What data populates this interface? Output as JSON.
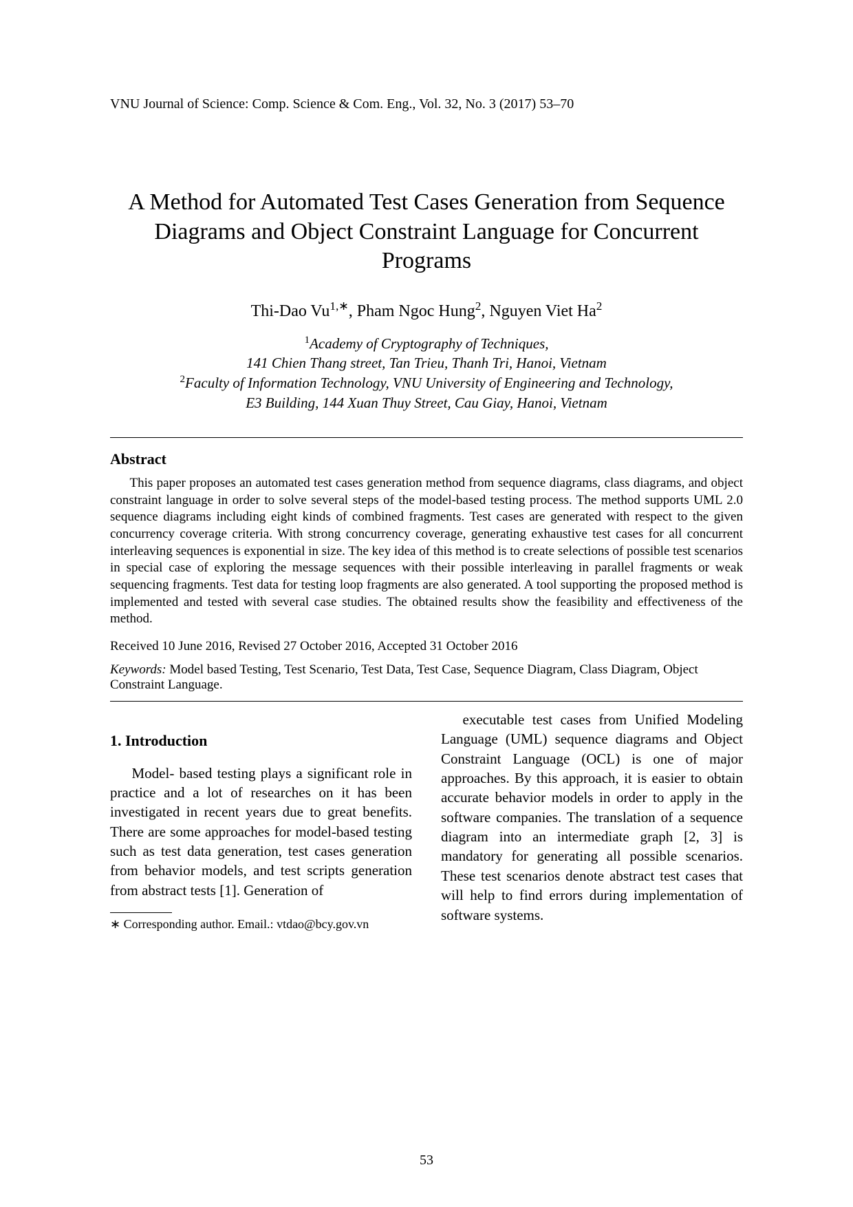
{
  "journal_header": "VNU Journal of Science: Comp. Science & Com. Eng., Vol. 32, No. 3 (2017) 53–70",
  "title": "A Method for Automated Test Cases Generation from Sequence Diagrams and Object Constraint Language for Concurrent Programs",
  "authors_html": "Thi-Dao Vu<sup class='sup'>1,*</sup>, Pham Ngoc Hung<sup class='sup'>2</sup>, Nguyen Viet Ha<sup class='sup'>2</sup>",
  "affiliations": {
    "line1_sup": "1",
    "line1": "Academy of Cryptography of Techniques,",
    "line2": "141 Chien Thang street, Tan Trieu, Thanh Tri, Hanoi, Vietnam",
    "line3_sup": "2",
    "line3": "Faculty of Information Technology, VNU University of Engineering and Technology,",
    "line4": "E3 Building, 144 Xuan Thuy Street, Cau Giay, Hanoi, Vietnam"
  },
  "abstract_heading": "Abstract",
  "abstract_body": "This paper proposes an automated test cases generation method from sequence diagrams, class diagrams, and object constraint language in order to solve several steps of the model-based testing process. The method supports UML 2.0 sequence diagrams including eight kinds of combined fragments. Test cases are generated with respect to the given concurrency coverage criteria. With strong concurrency coverage, generating exhaustive test cases for all concurrent interleaving sequences is exponential in size. The key idea of this method is to create selections of possible test scenarios in special case of exploring the message sequences with their possible interleaving in parallel fragments or weak sequencing fragments. Test data for testing loop fragments are also generated. A tool supporting the proposed method is implemented and tested with several case studies. The obtained results show the feasibility and effectiveness of the method.",
  "received": "Received 10 June 2016, Revised 27 October 2016, Accepted 31 October 2016",
  "keywords_label": "Keywords:",
  "keywords_text": "Model based Testing, Test Scenario, Test Data, Test Case, Sequence Diagram, Class Diagram, Object Constraint Language.",
  "section1_heading": "1.  Introduction",
  "intro_para1": "Model- based testing plays a significant role in practice and a lot of researches on it has been investigated in recent years due to great benefits.  There are some approaches for model-based testing such as test data generation,  test  cases  generation  from behavior models, and test scripts generation from  abstract  tests  [1].    Generation  of",
  "intro_para2": "executable test cases from Unified Modeling Language (UML) sequence diagrams and Object Constraint Language (OCL) is one of major approaches.  By this approach, it is easier to obtain accurate behavior models in order to apply in the software companies. The translation of a sequence diagram into an intermediate graph [2, 3] is mandatory for generating all possible scenarios. These test scenarios denote abstract test cases that will help to find errors during implementation of software systems.",
  "footnote_marker": "∗",
  "footnote_text": " Corresponding author. Email.: vtdao@bcy.gov.vn",
  "page_number": "53"
}
